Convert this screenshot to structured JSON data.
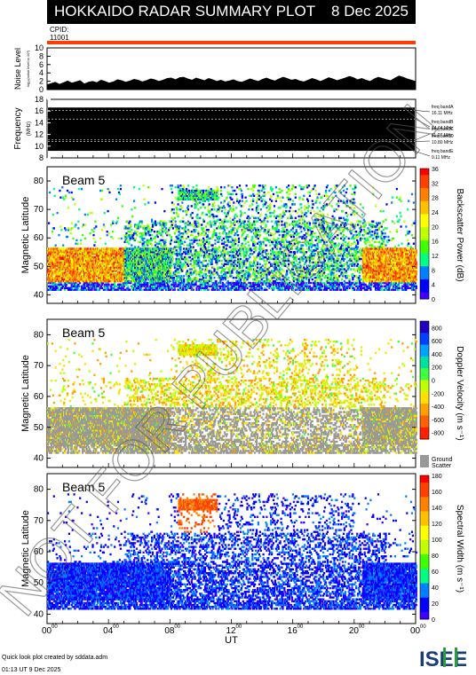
{
  "header": {
    "title": "HOKKAIDO RADAR SUMMARY PLOT",
    "date": "8 Dec 2025",
    "cpid_label": "CPID:",
    "cpid_value": "11001"
  },
  "footer": {
    "credit": "Quick look plot created by sddata.adm",
    "created": "01:13 UT 9 Dec 2025",
    "logo_text": "ISEE"
  },
  "watermark": "NOT FOR PUBLICATION",
  "colors": {
    "red_line": "#ff3b00",
    "ground_scatter": "#999999",
    "panel_bg": "#ffffff"
  },
  "chart_data": [
    {
      "type": "area",
      "name": "noise",
      "ylabel": "Noise Level",
      "ylabel_sub": "log₁₀(noise level in 10³)",
      "ylim": [
        0,
        10
      ],
      "yticks": [
        0,
        2,
        4,
        6,
        8,
        10
      ],
      "xlim_hours": [
        0,
        24
      ],
      "values": [
        1.2,
        1.5,
        1.8,
        1.3,
        1.7,
        2.1,
        1.6,
        1.9,
        2.2,
        1.4,
        1.8,
        2.0,
        1.7,
        2.3,
        2.0,
        1.6,
        1.9,
        2.4,
        2.2,
        1.8,
        2.1,
        2.5,
        2.3,
        1.9,
        2.2,
        2.6,
        2.4,
        2.0,
        2.3,
        2.7,
        2.8,
        2.4,
        2.9,
        3.0,
        2.6,
        2.3,
        2.8,
        2.5,
        2.2,
        2.7,
        2.4,
        2.0,
        2.3,
        1.9,
        2.1,
        2.4,
        2.0,
        1.8,
        2.2,
        2.6,
        2.3,
        2.0,
        2.5,
        2.8,
        2.4,
        2.1,
        2.6,
        3.0,
        2.7,
        2.3,
        2.5,
        2.1,
        1.9,
        2.3,
        2.7,
        2.4,
        2.0,
        2.4,
        2.9,
        2.6,
        2.2,
        2.5,
        2.8,
        3.2,
        2.9,
        2.4,
        2.7,
        2.3,
        2.0,
        2.6,
        3.0,
        2.7,
        2.4,
        2.2,
        2.8,
        3.3,
        3.0,
        2.6,
        2.3,
        2.0
      ]
    },
    {
      "type": "line",
      "name": "frequency",
      "ylabel": "Frequency",
      "yunit": "(MHz)",
      "ylim": [
        8,
        18
      ],
      "yticks": [
        8,
        10,
        12,
        14,
        16,
        18
      ],
      "bands": [
        {
          "label": "freq bandA",
          "freq": "16.11 MHz",
          "mhz": 16.11
        },
        {
          "label": "freq bandB",
          "freq": "14.64 MHz",
          "mhz": 14.64
        },
        {
          "label": "freq bandC",
          "freq": "11.07 MHz",
          "mhz": 11.07
        },
        {
          "label": "freq bandD",
          "freq": "10.80 MHz",
          "mhz": 10.8
        },
        {
          "label": "freq bandE",
          "freq": "9.11 MHz",
          "mhz": 9.11
        }
      ]
    },
    {
      "type": "heatmap",
      "name": "power",
      "beam": "Beam  5",
      "ylabel": "Magnetic Latitude",
      "ylim": [
        37,
        85
      ],
      "yticks": [
        40,
        50,
        60,
        70,
        80
      ],
      "colorbar_label": "Backscatter Power (dB)",
      "colorbar_ticks": [
        "0",
        "4",
        "8",
        "12",
        "16",
        "20",
        "24",
        "28",
        "32",
        "36"
      ],
      "colorbar_max": 36
    },
    {
      "type": "heatmap",
      "name": "velocity",
      "beam": "Beam  5",
      "ylabel": "Magnetic Latitude",
      "ylim": [
        37,
        85
      ],
      "yticks": [
        40,
        50,
        60,
        70,
        80
      ],
      "colorbar_label": "Doppler Velocity (m s⁻¹)",
      "colorbar_ticks": [
        "800",
        "600",
        "400",
        "200",
        "0",
        "-200",
        "-400",
        "-600",
        "-800"
      ],
      "ground_label_1": "Ground",
      "ground_label_2": "Scatter"
    },
    {
      "type": "heatmap",
      "name": "width",
      "beam": "Beam  5",
      "ylabel": "Magnetic Latitude",
      "ylim": [
        37,
        85
      ],
      "yticks": [
        40,
        50,
        60,
        70,
        80
      ],
      "colorbar_label": "Spectral Width (m s⁻¹)",
      "colorbar_ticks": [
        "0",
        "20",
        "40",
        "60",
        "80",
        "100",
        "120",
        "140",
        "160",
        "180"
      ],
      "colorbar_max": 180
    }
  ],
  "time_axis": {
    "xlabel": "UT",
    "ticks": [
      {
        "hh": "00",
        "mm": "00"
      },
      {
        "hh": "04",
        "mm": "00"
      },
      {
        "hh": "08",
        "mm": "00"
      },
      {
        "hh": "12",
        "mm": "00"
      },
      {
        "hh": "16",
        "mm": "00"
      },
      {
        "hh": "20",
        "mm": "00"
      },
      {
        "hh": "00",
        "mm": "00"
      }
    ]
  }
}
